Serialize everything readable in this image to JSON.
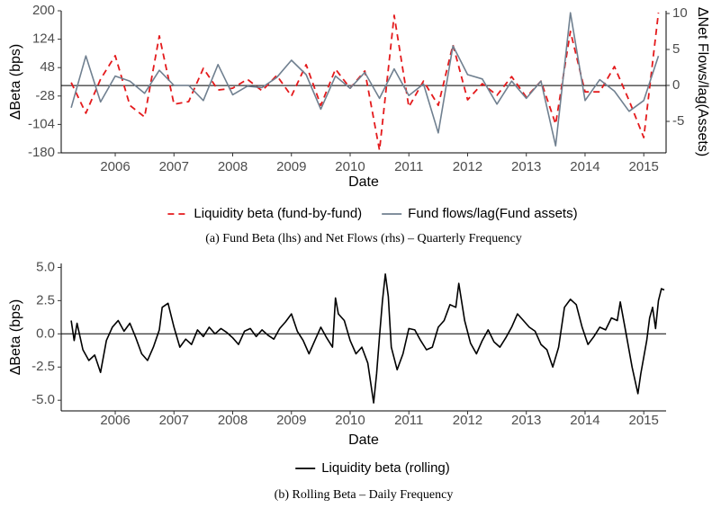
{
  "chart_data": [
    {
      "type": "line",
      "xlabel": "Date",
      "ylabel": "ΔBeta (bps)",
      "y2label": "ΔNet Flows/lag(Assets)",
      "caption": "(a)  Fund Beta (lhs) and Net Flows (rhs) – Quarterly Frequency",
      "x": [
        2005.25,
        2005.5,
        2005.75,
        2006,
        2006.25,
        2006.5,
        2006.75,
        2007,
        2007.25,
        2007.5,
        2007.75,
        2008,
        2008.25,
        2008.5,
        2008.75,
        2009,
        2009.25,
        2009.5,
        2009.75,
        2010,
        2010.25,
        2010.5,
        2010.75,
        2011,
        2011.25,
        2011.5,
        2011.75,
        2012,
        2012.25,
        2012.5,
        2012.75,
        2013,
        2013.25,
        2013.5,
        2013.75,
        2014,
        2014.25,
        2014.5,
        2014.75,
        2015,
        2015.25
      ],
      "xlim": [
        2005.08,
        2015.38
      ],
      "xticks": [
        2006,
        2007,
        2008,
        2009,
        2010,
        2011,
        2012,
        2013,
        2014,
        2015
      ],
      "ylim": [
        -180,
        200
      ],
      "yticks": [
        -180,
        -104,
        -28,
        48,
        124,
        200
      ],
      "y2lim": [
        -9.375,
        10.375
      ],
      "y2ticks": [
        -5,
        0,
        5,
        10
      ],
      "hline": 0,
      "series": [
        {
          "name": "Liquidity beta (fund-by-fund)",
          "color": "#e41a1c",
          "dashed": true,
          "values": [
            8,
            -74,
            17,
            80,
            -53,
            -84,
            133,
            -50,
            -43,
            46,
            -12,
            -7,
            17,
            -14,
            27,
            -28,
            56,
            -53,
            44,
            -7,
            39,
            -173,
            188,
            -57,
            12,
            -53,
            109,
            -38,
            5,
            -26,
            24,
            -31,
            12,
            -103,
            145,
            -17,
            -17,
            51,
            -40,
            -139,
            195
          ]
        },
        {
          "name": "Fund flows/lag(Fund assets)",
          "color": "#708090",
          "dashed": false,
          "axis": "y2",
          "values": [
            -3.1,
            4.1,
            -2.3,
            1.3,
            0.6,
            -1.1,
            2.1,
            0,
            0,
            -2.1,
            2.9,
            -1.3,
            -0.1,
            -0.3,
            1.1,
            3.5,
            1.5,
            -3.3,
            1.3,
            -0.4,
            1.8,
            -1.8,
            2.3,
            -1.4,
            0.2,
            -6.6,
            5.5,
            1.5,
            0.9,
            -2.6,
            0.6,
            -1.8,
            0.6,
            -8.4,
            10.1,
            -2.1,
            0.8,
            -0.8,
            -3.6,
            -2.1,
            4.1
          ]
        }
      ]
    },
    {
      "type": "line",
      "xlabel": "Date",
      "ylabel": "ΔBeta (bps)",
      "caption": "(b)  Rolling Beta – Daily Frequency",
      "x": [
        2005.25,
        2005.3,
        2005.35,
        2005.45,
        2005.55,
        2005.65,
        2005.75,
        2005.85,
        2005.95,
        2006.05,
        2006.15,
        2006.25,
        2006.35,
        2006.45,
        2006.55,
        2006.65,
        2006.75,
        2006.8,
        2006.9,
        2007,
        2007.1,
        2007.2,
        2007.3,
        2007.4,
        2007.5,
        2007.6,
        2007.7,
        2007.8,
        2007.9,
        2008,
        2008.1,
        2008.2,
        2008.3,
        2008.4,
        2008.5,
        2008.6,
        2008.7,
        2008.8,
        2008.9,
        2009,
        2009.1,
        2009.2,
        2009.3,
        2009.4,
        2009.5,
        2009.6,
        2009.7,
        2009.75,
        2009.8,
        2009.9,
        2010,
        2010.1,
        2010.2,
        2010.3,
        2010.4,
        2010.45,
        2010.5,
        2010.55,
        2010.6,
        2010.65,
        2010.7,
        2010.8,
        2010.9,
        2011,
        2011.1,
        2011.2,
        2011.3,
        2011.4,
        2011.5,
        2011.6,
        2011.7,
        2011.8,
        2011.85,
        2011.95,
        2012.05,
        2012.15,
        2012.25,
        2012.35,
        2012.45,
        2012.55,
        2012.65,
        2012.75,
        2012.85,
        2012.95,
        2013.05,
        2013.15,
        2013.25,
        2013.35,
        2013.45,
        2013.55,
        2013.65,
        2013.75,
        2013.85,
        2013.95,
        2014.05,
        2014.15,
        2014.25,
        2014.35,
        2014.45,
        2014.55,
        2014.6,
        2014.7,
        2014.8,
        2014.9,
        2014.95,
        2015.05,
        2015.1,
        2015.15,
        2015.2,
        2015.25,
        2015.3,
        2015.35
      ],
      "xlim": [
        2005.08,
        2015.38
      ],
      "xticks": [
        2006,
        2007,
        2008,
        2009,
        2010,
        2011,
        2012,
        2013,
        2014,
        2015
      ],
      "ylim": [
        -5.8,
        5.3
      ],
      "yticks": [
        {
          "value": -5,
          "label": "-5.0"
        },
        {
          "value": -2.5,
          "label": "-2.5"
        },
        {
          "value": 0,
          "label": "0.0"
        },
        {
          "value": 2.5,
          "label": "2.5"
        },
        {
          "value": 5,
          "label": "5.0"
        }
      ],
      "hline": 0,
      "series": [
        {
          "name": "Liquidity beta (rolling)",
          "color": "#000000",
          "dashed": false,
          "values": [
            1.0,
            -0.5,
            0.8,
            -1.2,
            -2.0,
            -1.6,
            -2.9,
            -0.5,
            0.5,
            1.0,
            0.2,
            0.8,
            -0.3,
            -1.5,
            -2.0,
            -1.0,
            0.3,
            2.0,
            2.3,
            0.5,
            -1.0,
            -0.4,
            -0.8,
            0.3,
            -0.2,
            0.5,
            0.0,
            0.4,
            0.1,
            -0.3,
            -0.8,
            0.2,
            0.4,
            -0.2,
            0.3,
            -0.1,
            -0.4,
            0.4,
            0.9,
            1.5,
            0.2,
            -0.5,
            -1.5,
            -0.5,
            0.5,
            -0.3,
            -1.0,
            2.7,
            1.5,
            1.0,
            -0.5,
            -1.5,
            -1.0,
            -2.2,
            -5.2,
            -3.0,
            -0.2,
            2.5,
            4.5,
            2.8,
            -1.0,
            -2.7,
            -1.5,
            0.4,
            0.3,
            -0.5,
            -1.2,
            -1.0,
            0.5,
            1.0,
            2.2,
            2.0,
            3.8,
            1.0,
            -0.7,
            -1.5,
            -0.5,
            0.3,
            -0.6,
            -1.0,
            -0.3,
            0.5,
            1.5,
            1.0,
            0.5,
            0.2,
            -0.8,
            -1.2,
            -2.5,
            -1.0,
            2.0,
            2.6,
            2.2,
            0.5,
            -0.8,
            -0.2,
            0.5,
            0.3,
            1.2,
            1.0,
            2.4,
            0.0,
            -2.5,
            -4.5,
            -3.0,
            -0.5,
            1.2,
            2.0,
            0.4,
            2.5,
            3.4,
            3.3
          ]
        }
      ]
    }
  ]
}
